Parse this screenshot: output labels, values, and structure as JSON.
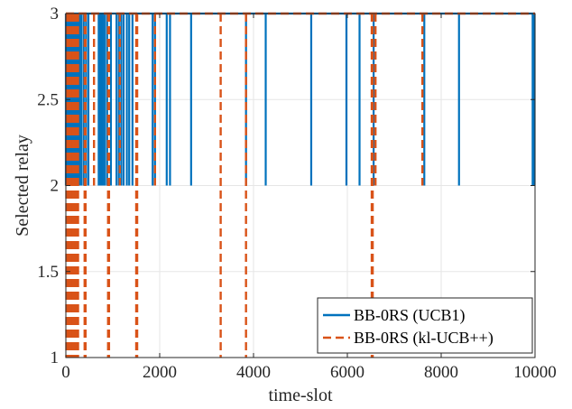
{
  "chart_data": {
    "type": "line",
    "xlabel": "time-slot",
    "ylabel": "Selected relay",
    "xlim": [
      0,
      10000
    ],
    "ylim": [
      1,
      3
    ],
    "xticks": [
      0,
      2000,
      4000,
      6000,
      8000,
      10000
    ],
    "yticks": [
      1,
      1.5,
      2,
      2.5,
      3
    ],
    "xtick_labels": [
      "0",
      "2000",
      "4000",
      "6000",
      "8000",
      "10000"
    ],
    "ytick_labels": [
      "1",
      "1.5",
      "2",
      "2.5",
      "3"
    ],
    "grid": true,
    "legend_position": "bottom-right",
    "series": [
      {
        "name": "BB-0RS (UCB1)",
        "color": "#0072BD",
        "style": "solid",
        "baseline": 3,
        "dip_to": 2,
        "dips": [
          0,
          20,
          40,
          60,
          90,
          120,
          150,
          180,
          210,
          250,
          290,
          330,
          380,
          430,
          480,
          700,
          730,
          760,
          790,
          830,
          880,
          960,
          1080,
          1130,
          1180,
          1230,
          1300,
          1350,
          1420,
          1850,
          1900,
          2150,
          2220,
          2670,
          3840,
          4260,
          5230,
          5980,
          6260,
          6560,
          7640,
          8380,
          9950,
          9970,
          9990
        ]
      },
      {
        "name": "BB-0RS (kl-UCB++)",
        "color": "#D95319",
        "style": "dashed",
        "baseline": 3,
        "dip_to": 1,
        "dips": [
          10,
          30,
          50,
          80,
          110,
          140,
          170,
          200,
          230,
          260,
          400,
          420,
          900,
          920,
          1500,
          1520,
          3300,
          6520,
          6540,
          3840
        ],
        "dip_to_2": [
          600,
          1150,
          1900,
          6600,
          7600
        ]
      }
    ]
  }
}
